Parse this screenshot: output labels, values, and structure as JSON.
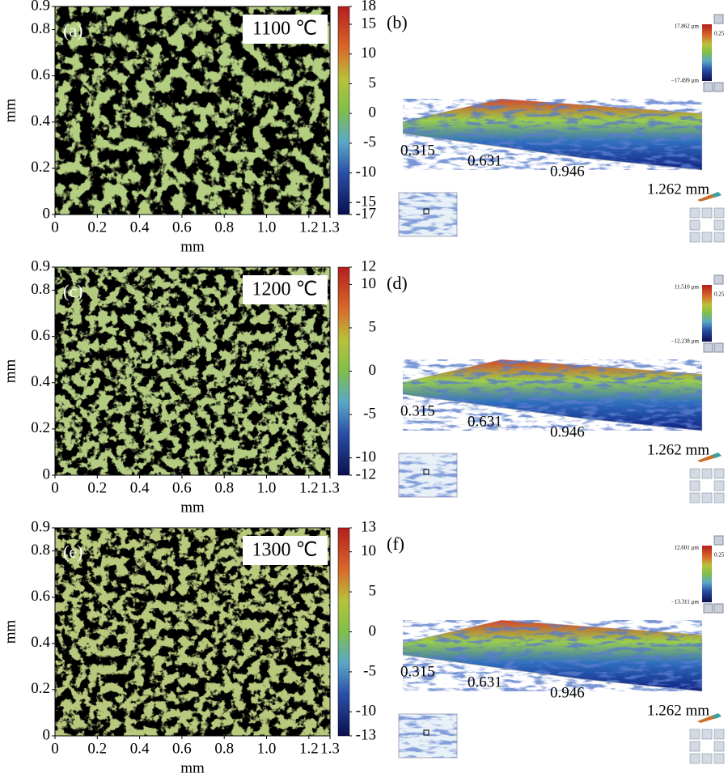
{
  "figure": {
    "panels": [
      {
        "map": {
          "label": "(a)",
          "temperature": "1100 ℃",
          "xlabel": "mm",
          "ylabel": "mm",
          "xlim": [
            0,
            1.3
          ],
          "xticks": [
            0,
            0.2,
            0.4,
            0.6,
            0.8,
            {
              "value": 1,
              "label": "1.0"
            },
            1.2,
            1.3
          ],
          "ylim": [
            0,
            0.9
          ],
          "yticks": [
            0,
            0.2,
            0.4,
            0.6,
            0.8,
            0.9
          ],
          "clim": [
            -17,
            18
          ],
          "cticks": [
            18,
            15,
            10,
            5,
            0,
            -5,
            -10,
            -15,
            -17
          ]
        },
        "view3d": {
          "label": "(b)",
          "axis_labels": [
            "0.315",
            "0.631",
            "0.946",
            "1.262 mm"
          ],
          "max": "17.862 µm",
          "min": "−17.499 µm",
          "scale": "0.25"
        }
      },
      {
        "map": {
          "label": "(c)",
          "temperature": "1200 ℃",
          "xlabel": "mm",
          "ylabel": "mm",
          "xlim": [
            0,
            1.3
          ],
          "xticks": [
            0,
            0.2,
            0.4,
            0.6,
            0.8,
            {
              "value": 1,
              "label": "1.0"
            },
            1.2,
            1.3
          ],
          "ylim": [
            0,
            0.9
          ],
          "yticks": [
            0,
            0.2,
            0.4,
            0.6,
            0.8,
            0.9
          ],
          "clim": [
            -12,
            12
          ],
          "cticks": [
            12,
            10,
            5,
            0,
            -5,
            -10,
            -12
          ]
        },
        "view3d": {
          "label": "(d)",
          "axis_labels": [
            "0.315",
            "0.631",
            "0.946",
            "1.262 mm"
          ],
          "max": "11.510 µm",
          "min": "−12.238 µm",
          "scale": "0.25"
        }
      },
      {
        "map": {
          "label": "(e)",
          "temperature": "1300 ℃",
          "xlabel": "mm",
          "ylabel": "mm",
          "xlim": [
            0,
            1.3
          ],
          "xticks": [
            0,
            0.2,
            0.4,
            0.6,
            0.8,
            {
              "value": 1,
              "label": "1.0"
            },
            1.2,
            1.3
          ],
          "ylim": [
            0,
            0.9
          ],
          "yticks": [
            0,
            0.2,
            0.4,
            0.6,
            0.8,
            0.9
          ],
          "clim": [
            -13,
            13
          ],
          "cticks": [
            13,
            10,
            5,
            0,
            -5,
            -10,
            -13
          ]
        },
        "view3d": {
          "label": "(f)",
          "axis_labels": [
            "0.315",
            "0.631",
            "0.946",
            "1.262 mm"
          ],
          "max": "12.601 µm",
          "min": "−13.311 µm",
          "scale": "0.25"
        }
      }
    ]
  }
}
